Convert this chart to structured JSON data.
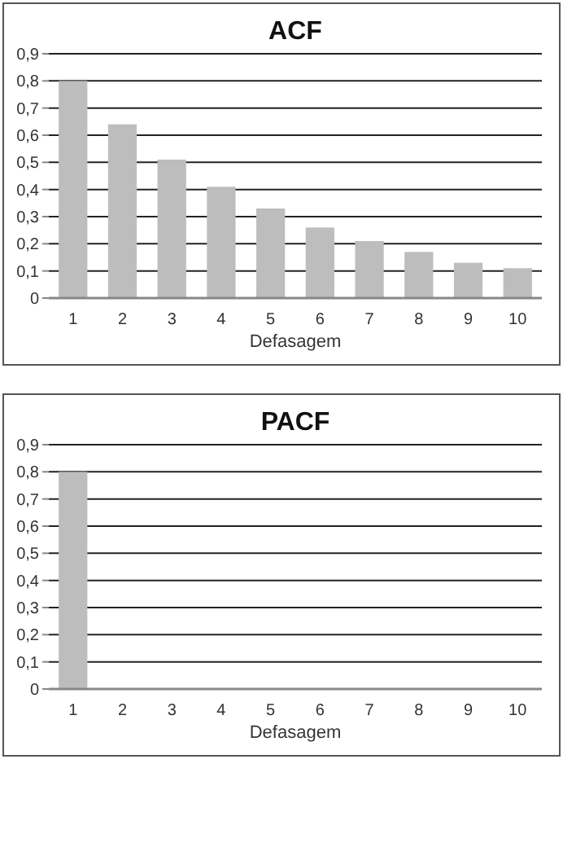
{
  "chart_data": [
    {
      "type": "bar",
      "title": "ACF",
      "xlabel": "Defasagem",
      "categories": [
        "1",
        "2",
        "3",
        "4",
        "5",
        "6",
        "7",
        "8",
        "9",
        "10"
      ],
      "values": [
        0.8,
        0.64,
        0.51,
        0.41,
        0.33,
        0.26,
        0.21,
        0.17,
        0.13,
        0.11
      ],
      "color": "#bdbdbd",
      "ylim": [
        0,
        0.9
      ],
      "yticks": [
        0,
        {
          "value": 0.1,
          "label": "0,1"
        },
        {
          "value": 0.2,
          "label": "0,2"
        },
        {
          "value": 0.3,
          "label": "0,3"
        },
        {
          "value": 0.4,
          "label": "0,4"
        },
        {
          "value": 0.5,
          "label": "0,5"
        },
        {
          "value": 0.6,
          "label": "0,6"
        },
        {
          "value": 0.7,
          "label": "0,7"
        },
        {
          "value": 0.8,
          "label": "0,8"
        },
        {
          "value": 0.9,
          "label": "0,9"
        }
      ],
      "grid": "y"
    },
    {
      "type": "bar",
      "title": "PACF",
      "xlabel": "Defasagem",
      "categories": [
        "1",
        "2",
        "3",
        "4",
        "5",
        "6",
        "7",
        "8",
        "9",
        "10"
      ],
      "values": [
        0.8,
        0,
        0,
        0,
        0,
        0,
        0,
        0,
        0,
        0
      ],
      "color": "#bdbdbd",
      "ylim": [
        0,
        0.9
      ],
      "yticks": [
        0,
        {
          "value": 0.1,
          "label": "0,1"
        },
        {
          "value": 0.2,
          "label": "0,2"
        },
        {
          "value": 0.3,
          "label": "0,3"
        },
        {
          "value": 0.4,
          "label": "0,4"
        },
        {
          "value": 0.5,
          "label": "0,5"
        },
        {
          "value": 0.6,
          "label": "0,6"
        },
        {
          "value": 0.7,
          "label": "0,7"
        },
        {
          "value": 0.8,
          "label": "0,8"
        },
        {
          "value": 0.9,
          "label": "0,9"
        }
      ],
      "grid": "y"
    }
  ]
}
